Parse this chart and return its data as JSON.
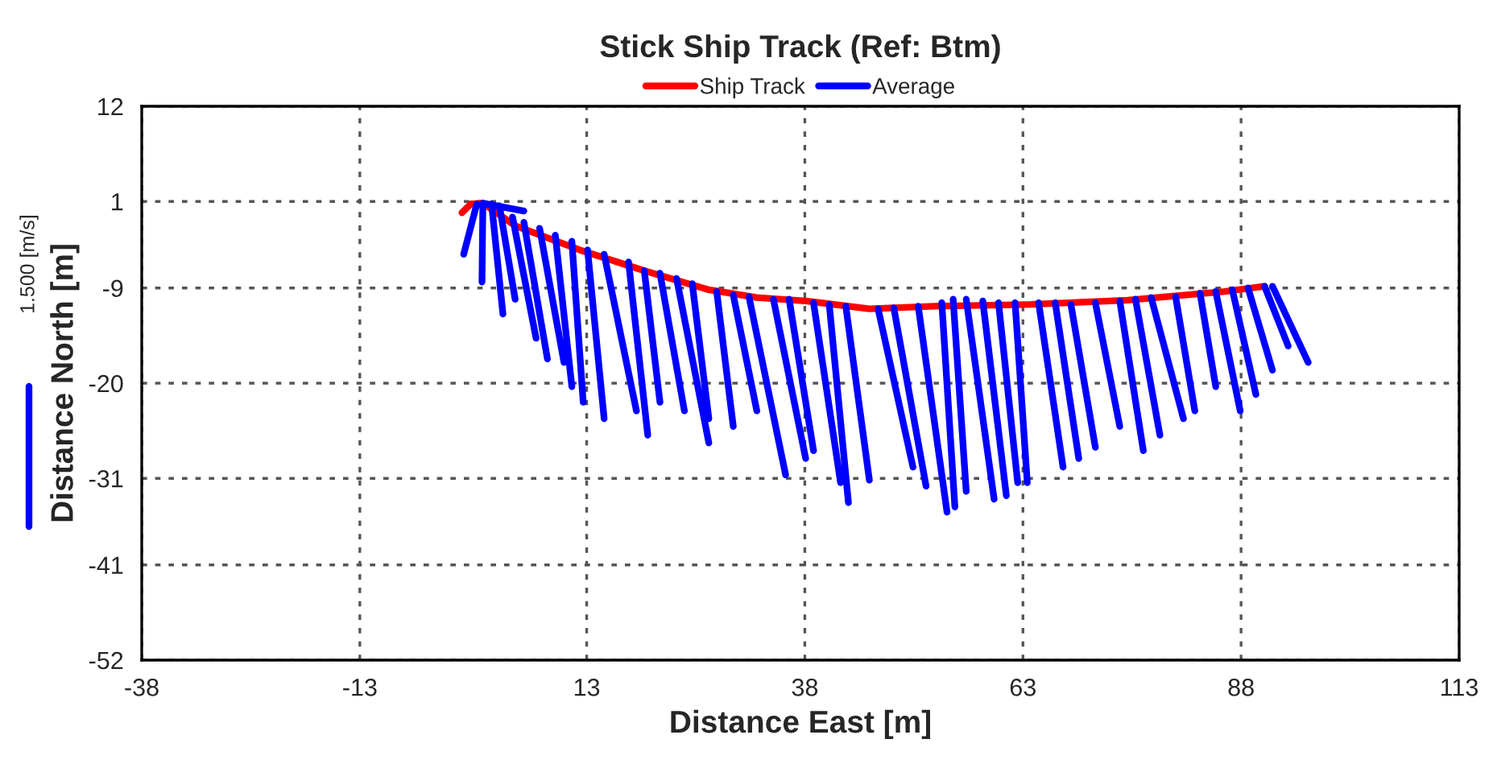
{
  "chart_data": {
    "type": "line",
    "title": "Stick Ship Track (Ref: Btm)",
    "xlabel": "Distance East [m]",
    "ylabel": "Distance North [m]",
    "annotations": [
      "1.500 [m/s]"
    ],
    "xlim": [
      -38,
      113
    ],
    "ylim": [
      -52,
      12
    ],
    "xticks": [
      -38,
      -13,
      13,
      38,
      63,
      88,
      113
    ],
    "yticks": [
      -52,
      -41,
      -31,
      -20,
      -9,
      1,
      12
    ],
    "grid": true,
    "legend": "top",
    "series": [
      {
        "name": "Ship Track",
        "color": "#ff0000",
        "x": [
          -1.3,
          -0.3,
          1.1,
          4.8,
          12.2,
          19.6,
          27.0,
          32.5,
          38.1,
          45.4,
          52.8,
          63.9,
          75.0,
          86.1,
          90.7
        ],
        "values": [
          -0.3,
          0.7,
          0.8,
          -1.8,
          -4.6,
          -7.0,
          -9.2,
          -10.1,
          -10.5,
          -11.4,
          -11.1,
          -10.9,
          -10.4,
          -9.4,
          -8.8
        ]
      },
      {
        "name": "Average",
        "color": "#0000ff",
        "x": [
          0.4,
          -1.1,
          null,
          1.1,
          1.0,
          null,
          2.1,
          3.4,
          null,
          3.0,
          4.8,
          null,
          4.5,
          7.2,
          null,
          5.8,
          8.5,
          null,
          7.6,
          10.4,
          null,
          9.4,
          11.3,
          null,
          11.3,
          12.6,
          null,
          13.1,
          15.0,
          null,
          15.0,
          18.7,
          null,
          17.8,
          20.0,
          null,
          19.6,
          21.4,
          null,
          21.4,
          24.2,
          null,
          23.3,
          27.0,
          null,
          25.1,
          27.0,
          null,
          27.9,
          29.8,
          null,
          29.8,
          32.5,
          null,
          31.6,
          35.8,
          null,
          34.4,
          38.1,
          null,
          36.2,
          39.0,
          null,
          39.0,
          42.1,
          null,
          40.8,
          43.0,
          null,
          42.7,
          45.4,
          null,
          46.4,
          50.4,
          null,
          48.2,
          51.9,
          null,
          51.0,
          54.3,
          null,
          53.7,
          55.2,
          null,
          55.0,
          56.5,
          null,
          56.5,
          59.7,
          null,
          58.4,
          61.1,
          null,
          60.2,
          62.4,
          null,
          62.1,
          63.5,
          null,
          64.8,
          67.6,
          null,
          66.7,
          69.4,
          null,
          68.5,
          71.3,
          null,
          71.3,
          74.1,
          null,
          74.1,
          76.8,
          null,
          75.9,
          78.7,
          null,
          77.7,
          81.4,
          null,
          80.5,
          82.7,
          null,
          83.3,
          85.1,
          null,
          85.1,
          87.9,
          null,
          87.0,
          89.7,
          null,
          88.8,
          91.6,
          null,
          90.7,
          93.4,
          null,
          91.6,
          95.7,
          null,
          1.1,
          5.8
        ],
        "values": [
          0.7,
          -5.1,
          null,
          0.8,
          -8.3,
          null,
          0.7,
          -12.0,
          null,
          0.5,
          -10.3,
          null,
          -0.8,
          -14.8,
          null,
          -1.4,
          -17.2,
          null,
          -2.1,
          -17.6,
          null,
          -2.9,
          -20.4,
          null,
          -3.6,
          -22.2,
          null,
          -4.6,
          -24.1,
          null,
          -5.1,
          -23.2,
          null,
          -6.0,
          -26.0,
          null,
          -7.0,
          -22.2,
          null,
          -7.3,
          -23.2,
          null,
          -7.9,
          -26.9,
          null,
          -8.5,
          -24.1,
          null,
          -9.4,
          -25.0,
          null,
          -9.8,
          -23.2,
          null,
          -10.0,
          -30.6,
          null,
          -10.3,
          -28.7,
          null,
          -10.3,
          -27.8,
          null,
          -10.7,
          -31.5,
          null,
          -10.9,
          -33.8,
          null,
          -11.1,
          -31.2,
          null,
          -11.4,
          -29.7,
          null,
          -11.3,
          -31.9,
          null,
          -11.1,
          -34.9,
          null,
          -10.7,
          -34.3,
          null,
          -10.3,
          -32.5,
          null,
          -10.3,
          -33.4,
          null,
          -10.5,
          -33.0,
          null,
          -10.7,
          -31.5,
          null,
          -10.7,
          -31.5,
          null,
          -10.7,
          -29.7,
          null,
          -10.7,
          -28.7,
          null,
          -10.9,
          -27.4,
          null,
          -10.7,
          -25.0,
          null,
          -10.5,
          -27.8,
          null,
          -10.3,
          -26.0,
          null,
          -10.1,
          -24.1,
          null,
          -10.0,
          -23.2,
          null,
          -9.6,
          -20.4,
          null,
          -9.4,
          -23.2,
          null,
          -9.2,
          -21.3,
          null,
          -9.0,
          -18.5,
          null,
          -8.8,
          -15.7,
          null,
          -8.8,
          -17.6,
          null,
          0.8,
          -0.1
        ]
      }
    ]
  }
}
